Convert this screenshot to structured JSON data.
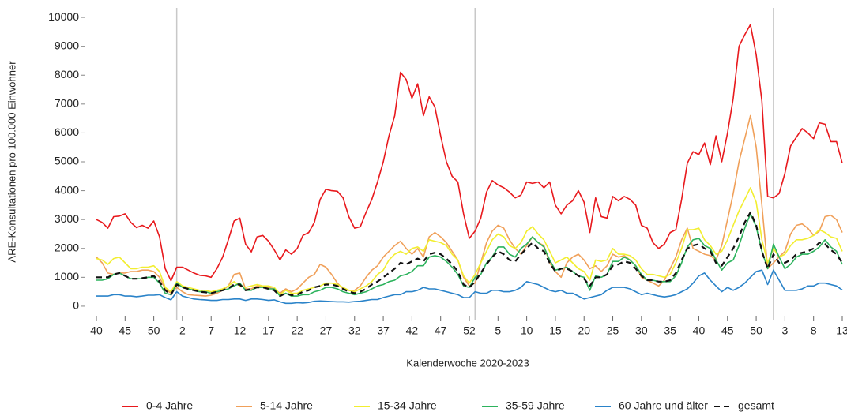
{
  "chart_data": {
    "type": "line",
    "ylabel": "ARE-Konsultationen pro 100.000 Einwohner",
    "xlabel": "Kalenderwoche 2020-2023",
    "categories": [
      "40",
      null,
      null,
      null,
      null,
      "45",
      null,
      null,
      null,
      null,
      "50",
      null,
      null,
      null,
      null,
      "2",
      null,
      null,
      null,
      null,
      "7",
      null,
      null,
      null,
      null,
      "12",
      null,
      null,
      null,
      null,
      "17",
      null,
      null,
      null,
      null,
      "22",
      null,
      null,
      null,
      null,
      "27",
      null,
      null,
      null,
      null,
      "32",
      null,
      null,
      null,
      null,
      "37",
      null,
      null,
      null,
      null,
      "42",
      null,
      null,
      null,
      null,
      "47",
      null,
      null,
      null,
      null,
      "52",
      null,
      null,
      null,
      null,
      "5",
      null,
      null,
      null,
      null,
      "10",
      null,
      null,
      null,
      null,
      "15",
      null,
      null,
      null,
      null,
      "20",
      null,
      null,
      null,
      null,
      "25",
      null,
      null,
      null,
      null,
      "30",
      null,
      null,
      null,
      null,
      "35",
      null,
      null,
      null,
      null,
      "40",
      null,
      null,
      null,
      null,
      "45",
      null,
      null,
      null,
      null,
      "50",
      null,
      null,
      null,
      null,
      "3",
      null,
      null,
      null,
      null,
      "8",
      null,
      null,
      null,
      null,
      "13"
    ],
    "vlines": [
      14,
      66,
      118
    ],
    "ylim": [
      -330,
      10330
    ],
    "yticks": [
      0,
      1000,
      2000,
      3000,
      4000,
      5000,
      6000,
      7000,
      8000,
      9000,
      10000
    ],
    "legend": "bottom",
    "series": [
      {
        "name": "0-4 Jahre",
        "color": "#e8191d",
        "values": [
          3000,
          2900,
          2700,
          3100,
          3120,
          3200,
          2900,
          2720,
          2800,
          2700,
          2950,
          2400,
          1300,
          880,
          1350,
          1350,
          1250,
          1150,
          1070,
          1050,
          1000,
          1300,
          1700,
          2300,
          2950,
          3050,
          2150,
          1880,
          2400,
          2450,
          2250,
          1950,
          1600,
          1950,
          1800,
          2000,
          2450,
          2550,
          2900,
          3700,
          4050,
          4000,
          3980,
          3750,
          3100,
          2700,
          2750,
          3250,
          3700,
          4300,
          5000,
          5900,
          6600,
          8100,
          7850,
          7200,
          7700,
          6600,
          7250,
          6900,
          5900,
          5000,
          4500,
          4300,
          3200,
          2350,
          2600,
          3050,
          3950,
          4350,
          4200,
          4100,
          3950,
          3750,
          3850,
          4300,
          4250,
          4300,
          4100,
          4300,
          3500,
          3200,
          3500,
          3650,
          4000,
          3600,
          2550,
          3750,
          3100,
          3050,
          3800,
          3650,
          3800,
          3700,
          3500,
          2800,
          2700,
          2200,
          2000,
          2150,
          2550,
          2650,
          3700,
          4950,
          5350,
          5250,
          5650,
          4900,
          5900,
          5000,
          6000,
          7200,
          9000,
          9400,
          9750,
          8700,
          7100,
          3800,
          3750,
          3900,
          4600,
          5550,
          5850,
          6150,
          6000,
          5800,
          6350,
          6300,
          5700,
          5700,
          4950
        ]
      },
      {
        "name": "5-14 Jahre",
        "color": "#f0a05a",
        "values": [
          1700,
          1500,
          1150,
          1100,
          1150,
          1150,
          1200,
          1200,
          1250,
          1250,
          1200,
          1000,
          600,
          450,
          650,
          500,
          400,
          380,
          370,
          350,
          380,
          450,
          550,
          700,
          1100,
          1150,
          600,
          600,
          700,
          700,
          650,
          600,
          450,
          600,
          500,
          600,
          800,
          1000,
          1100,
          1450,
          1350,
          1100,
          800,
          600,
          550,
          550,
          700,
          1000,
          1250,
          1400,
          1700,
          1900,
          2100,
          2250,
          2000,
          1800,
          2000,
          1700,
          2400,
          2550,
          2400,
          2200,
          1900,
          1600,
          1000,
          700,
          800,
          1500,
          2200,
          2600,
          2800,
          2700,
          2300,
          2000,
          1800,
          2100,
          2400,
          2200,
          2100,
          1500,
          1200,
          1000,
          1500,
          1700,
          1800,
          1600,
          1300,
          1400,
          1200,
          1400,
          1800,
          1700,
          1750,
          1600,
          1400,
          1000,
          900,
          800,
          700,
          900,
          1300,
          1700,
          2300,
          2700,
          2000,
          1900,
          1800,
          1750,
          1600,
          2100,
          3000,
          3900,
          5000,
          5800,
          6600,
          5500,
          3500,
          1300,
          1500,
          1700,
          1900,
          2500,
          2800,
          2850,
          2700,
          2450,
          2600,
          3100,
          3150,
          3000,
          2550
        ]
      },
      {
        "name": "15-34 Jahre",
        "color": "#f2ee30",
        "values": [
          1650,
          1600,
          1450,
          1650,
          1700,
          1500,
          1300,
          1300,
          1350,
          1350,
          1400,
          1200,
          650,
          500,
          850,
          700,
          650,
          600,
          550,
          550,
          500,
          550,
          600,
          700,
          850,
          700,
          650,
          700,
          750,
          700,
          700,
          650,
          400,
          550,
          450,
          450,
          550,
          600,
          650,
          700,
          800,
          800,
          750,
          650,
          550,
          500,
          600,
          700,
          850,
          1100,
          1250,
          1600,
          1800,
          1900,
          1800,
          2000,
          2050,
          1900,
          2300,
          2250,
          2200,
          2100,
          1800,
          1600,
          1050,
          800,
          1100,
          1500,
          1900,
          2300,
          2500,
          2400,
          2100,
          2000,
          2200,
          2600,
          2750,
          2500,
          2300,
          1900,
          1500,
          1600,
          1700,
          1500,
          1300,
          1200,
          900,
          1600,
          1550,
          1600,
          2000,
          1800,
          1800,
          1750,
          1600,
          1300,
          1100,
          1100,
          1050,
          1000,
          1100,
          1500,
          2000,
          2650,
          2650,
          2700,
          2300,
          2100,
          1800,
          1900,
          2300,
          2800,
          3300,
          3700,
          4100,
          3600,
          2300,
          1500,
          2000,
          1700,
          1800,
          2100,
          2300,
          2300,
          2350,
          2450,
          2650,
          2550,
          2400,
          2350,
          1900
        ]
      },
      {
        "name": "35-59 Jahre",
        "color": "#2db35d",
        "values": [
          900,
          900,
          950,
          1100,
          1150,
          1050,
          950,
          950,
          950,
          1000,
          1000,
          800,
          450,
          400,
          800,
          650,
          600,
          550,
          500,
          500,
          450,
          500,
          550,
          600,
          700,
          800,
          550,
          550,
          650,
          650,
          600,
          600,
          350,
          450,
          350,
          350,
          400,
          400,
          500,
          550,
          650,
          650,
          600,
          500,
          450,
          400,
          450,
          500,
          600,
          700,
          750,
          850,
          900,
          1050,
          1100,
          1200,
          1400,
          1400,
          1700,
          1750,
          1700,
          1550,
          1350,
          1100,
          700,
          650,
          1000,
          1100,
          1500,
          1700,
          2050,
          2050,
          1800,
          1700,
          2000,
          2150,
          2400,
          2200,
          2050,
          1600,
          1250,
          1300,
          1350,
          1200,
          1050,
          1000,
          550,
          1050,
          1000,
          1100,
          1550,
          1550,
          1700,
          1600,
          1400,
          1100,
          900,
          900,
          850,
          850,
          850,
          1050,
          1500,
          2050,
          2300,
          2350,
          2100,
          2000,
          1600,
          1250,
          1500,
          1600,
          2100,
          2700,
          3200,
          2750,
          1900,
          1300,
          2150,
          1700,
          1300,
          1450,
          1700,
          1800,
          1800,
          1900,
          2050,
          2300,
          2050,
          1900,
          1450
        ]
      },
      {
        "name": "60 Jahre und älter",
        "color": "#2a83c9",
        "values": [
          350,
          350,
          350,
          400,
          400,
          350,
          350,
          330,
          350,
          380,
          380,
          400,
          300,
          220,
          500,
          350,
          300,
          250,
          230,
          220,
          200,
          200,
          230,
          230,
          250,
          250,
          200,
          250,
          250,
          230,
          200,
          220,
          150,
          100,
          100,
          120,
          110,
          130,
          170,
          180,
          170,
          160,
          150,
          150,
          140,
          160,
          170,
          200,
          230,
          230,
          300,
          350,
          400,
          400,
          500,
          500,
          550,
          650,
          600,
          600,
          550,
          500,
          450,
          400,
          300,
          300,
          500,
          450,
          450,
          550,
          550,
          500,
          500,
          550,
          650,
          850,
          800,
          750,
          650,
          550,
          500,
          550,
          450,
          450,
          350,
          250,
          300,
          350,
          400,
          550,
          650,
          650,
          650,
          600,
          500,
          400,
          450,
          400,
          350,
          320,
          350,
          400,
          500,
          600,
          800,
          1050,
          1150,
          900,
          700,
          500,
          650,
          550,
          650,
          800,
          1000,
          1200,
          1250,
          750,
          1250,
          900,
          550,
          550,
          550,
          600,
          700,
          700,
          800,
          800,
          750,
          700,
          560
        ]
      },
      {
        "name": "gesamt",
        "color": "#111111",
        "dashed": true,
        "values": [
          1000,
          1000,
          1000,
          1100,
          1150,
          1050,
          950,
          950,
          970,
          1000,
          1050,
          850,
          550,
          400,
          750,
          650,
          600,
          550,
          500,
          480,
          450,
          500,
          550,
          620,
          750,
          750,
          550,
          600,
          650,
          650,
          600,
          550,
          350,
          450,
          380,
          400,
          500,
          550,
          650,
          700,
          750,
          750,
          700,
          600,
          500,
          450,
          500,
          600,
          750,
          850,
          1000,
          1150,
          1300,
          1500,
          1450,
          1550,
          1650,
          1550,
          1800,
          1850,
          1800,
          1650,
          1450,
          1200,
          750,
          650,
          850,
          1150,
          1450,
          1700,
          1900,
          1800,
          1600,
          1550,
          1800,
          2000,
          2200,
          2000,
          1900,
          1500,
          1200,
          1300,
          1300,
          1200,
          1050,
          950,
          700,
          1000,
          1000,
          1100,
          1400,
          1450,
          1550,
          1500,
          1300,
          1050,
          900,
          900,
          850,
          850,
          900,
          1150,
          1600,
          2000,
          2100,
          2150,
          2000,
          1900,
          1500,
          1400,
          1700,
          2000,
          2400,
          2900,
          3250,
          2800,
          1900,
          1300,
          1800,
          1500,
          1500,
          1600,
          1800,
          1850,
          1900,
          2000,
          2200,
          2150,
          1950,
          1800,
          1500
        ]
      }
    ]
  }
}
